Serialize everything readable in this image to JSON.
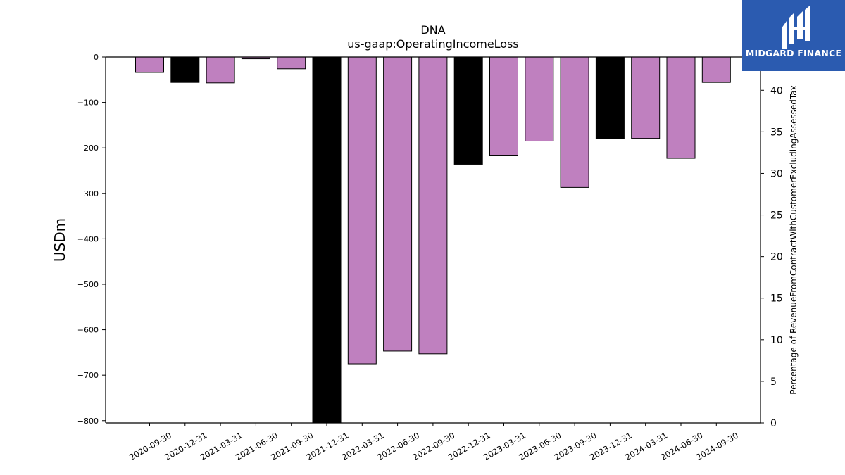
{
  "logo": {
    "text": "MIDGARD FINANCE",
    "icon": "midgard-logo-icon",
    "background": "#2b5bb0"
  },
  "chart_data": {
    "type": "bar",
    "title": "DNA",
    "subtitle": "us-gaap:OperatingIncomeLoss",
    "ylabel": "USDm",
    "y2label": "Percentage of RevenueFromContractWithCustomerExcludingAssessedTax",
    "ylim": [
      -805,
      0
    ],
    "y2lim": [
      0,
      44
    ],
    "yticks": [
      0,
      -100,
      -200,
      -300,
      -400,
      -500,
      -600,
      -700,
      -800
    ],
    "y2ticks": [
      0,
      5,
      10,
      15,
      20,
      25,
      30,
      35,
      40
    ],
    "categories": [
      "2020-09-30",
      "2020-12-31",
      "2021-03-31",
      "2021-06-30",
      "2021-09-30",
      "2021-12-31",
      "2022-03-31",
      "2022-06-30",
      "2022-09-30",
      "2022-12-31",
      "2023-03-31",
      "2023-06-30",
      "2023-09-30",
      "2023-12-31",
      "2024-03-31",
      "2024-06-30",
      "2024-09-30"
    ],
    "values": [
      -34,
      -56,
      -57,
      -4,
      -26,
      -805,
      -675,
      -647,
      -653,
      -236,
      -216,
      -185,
      -287,
      -179,
      -179,
      -223,
      -56
    ],
    "bar_colors": [
      "#bf80bf",
      "#000000",
      "#bf80bf",
      "#bf80bf",
      "#bf80bf",
      "#000000",
      "#bf80bf",
      "#bf80bf",
      "#bf80bf",
      "#000000",
      "#bf80bf",
      "#bf80bf",
      "#bf80bf",
      "#000000",
      "#bf80bf",
      "#bf80bf",
      "#bf80bf"
    ],
    "grid": false
  }
}
